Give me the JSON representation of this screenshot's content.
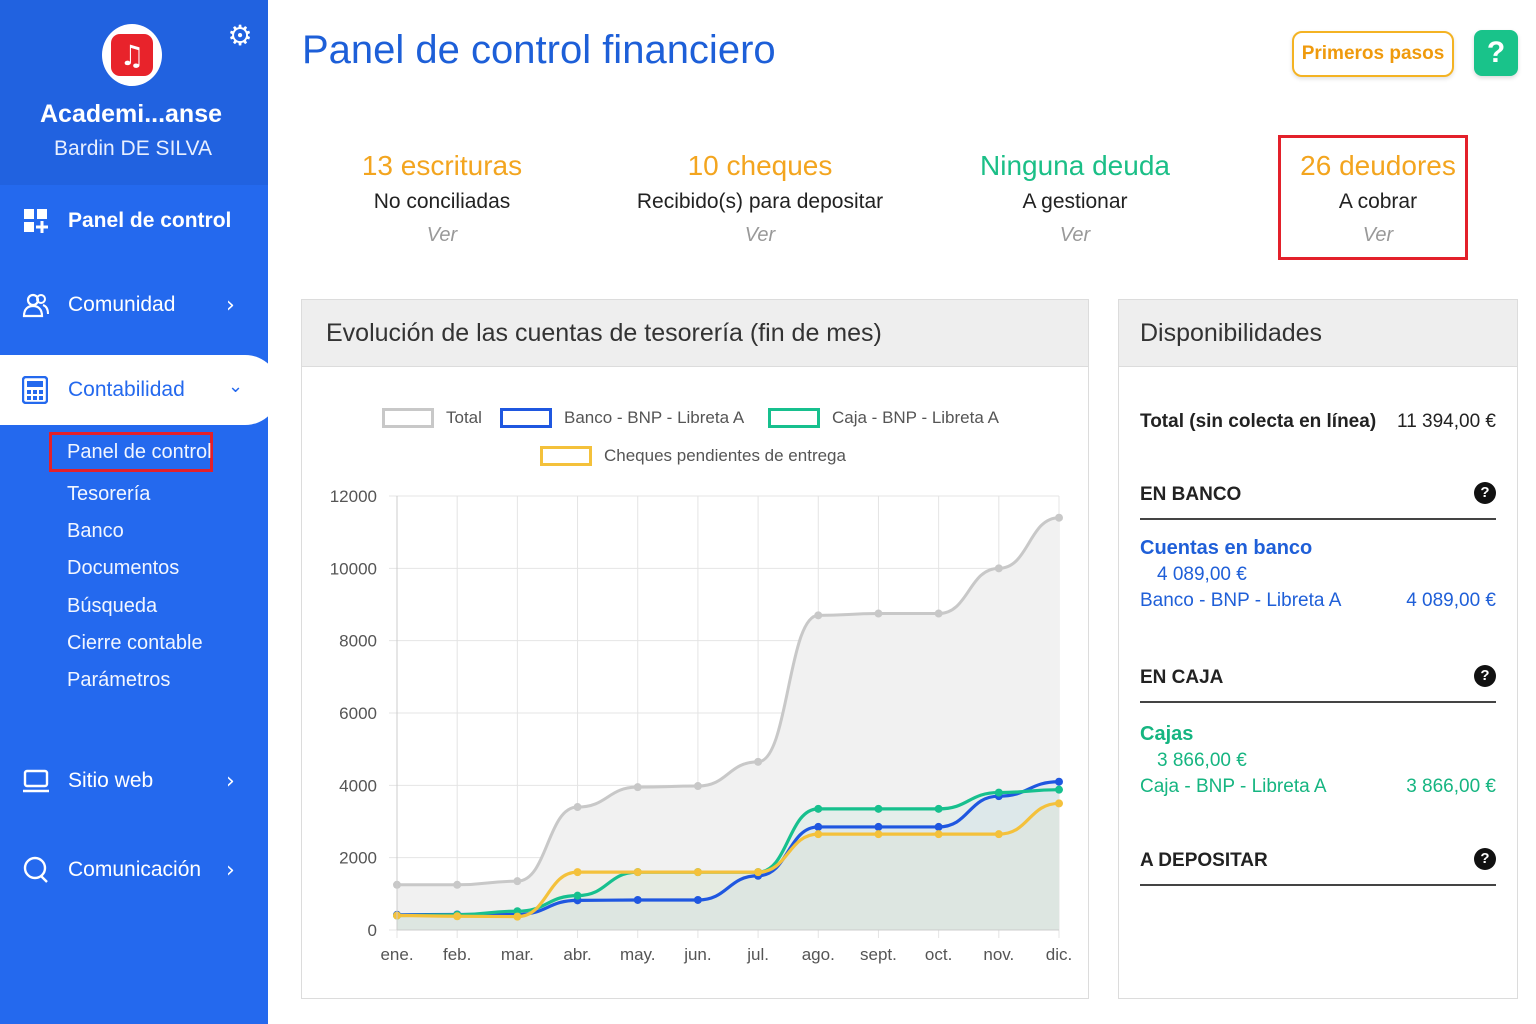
{
  "sidebar": {
    "org_name": "Academi...anse",
    "user_name": "Bardin DE SILVA",
    "nav": [
      {
        "label": "Panel de control"
      },
      {
        "label": "Comunidad"
      },
      {
        "label": "Contabilidad"
      },
      {
        "label": "Sitio web"
      },
      {
        "label": "Comunicación"
      }
    ],
    "sub_items": [
      "Panel de control",
      "Tesorería",
      "Banco",
      "Documentos",
      "Búsqueda",
      "Cierre contable",
      "Parámetros"
    ]
  },
  "header": {
    "title": "Panel de control financiero",
    "first_steps": "Primeros pasos",
    "help": "?"
  },
  "stats": [
    {
      "big": "13 escrituras",
      "sub": "No conciliadas",
      "link": "Ver",
      "color": "#f3a51f"
    },
    {
      "big": "10 cheques",
      "sub": "Recibido(s) para depositar",
      "link": "Ver",
      "color": "#f3a51f"
    },
    {
      "big": "Ninguna deuda",
      "sub": "A gestionar",
      "link": "Ver",
      "color": "#1bbf87"
    },
    {
      "big": "26 deudores",
      "sub": "A cobrar",
      "link": "Ver",
      "color": "#f3a51f"
    }
  ],
  "chart_panel": {
    "title": "Evolución de las cuentas de tesorería (fin de mes)"
  },
  "chart_data": {
    "type": "line",
    "categories": [
      "ene.",
      "feb.",
      "mar.",
      "abr.",
      "may.",
      "jun.",
      "jul.",
      "ago.",
      "sept.",
      "oct.",
      "nov.",
      "dic."
    ],
    "ylim": [
      0,
      12000
    ],
    "yticks": [
      "0",
      "2000",
      "4000",
      "6000",
      "8000",
      "10000",
      "12000"
    ],
    "grid": true,
    "legend_position": "top",
    "series": [
      {
        "name": "Total",
        "color": "#c8c8c8",
        "values": [
          1250,
          1250,
          1350,
          3400,
          3950,
          3980,
          4650,
          8700,
          8750,
          8750,
          10000,
          11400
        ]
      },
      {
        "name": "Banco - BNP - Libreta A",
        "color": "#1f57e0",
        "values": [
          420,
          430,
          430,
          820,
          830,
          830,
          1500,
          2850,
          2850,
          2850,
          3700,
          4100
        ]
      },
      {
        "name": "Caja - BNP - Libreta A",
        "color": "#17c08e",
        "values": [
          400,
          420,
          520,
          950,
          1600,
          1600,
          1600,
          3350,
          3350,
          3350,
          3800,
          3880
        ]
      },
      {
        "name": "Cheques pendientes de entrega",
        "color": "#f4c13b",
        "values": [
          400,
          380,
          370,
          1600,
          1600,
          1600,
          1600,
          2650,
          2650,
          2650,
          2650,
          3500
        ]
      }
    ]
  },
  "availability": {
    "title": "Disponibilidades",
    "total_label": "Total (sin colecta en línea)",
    "total_value": "11 394,00 €",
    "bank": {
      "header": "EN BANCO",
      "group": "Cuentas en banco",
      "group_value": "4 089,00 €",
      "account": "Banco - BNP - Libreta A",
      "account_value": "4 089,00 €",
      "color": "#1f5fd8"
    },
    "cash": {
      "header": "EN CAJA",
      "group": "Cajas",
      "group_value": "3 866,00 €",
      "account": "Caja - BNP - Libreta A",
      "account_value": "3 866,00 €",
      "color": "#16b581"
    },
    "deposit": {
      "header": "A DEPOSITAR"
    }
  }
}
